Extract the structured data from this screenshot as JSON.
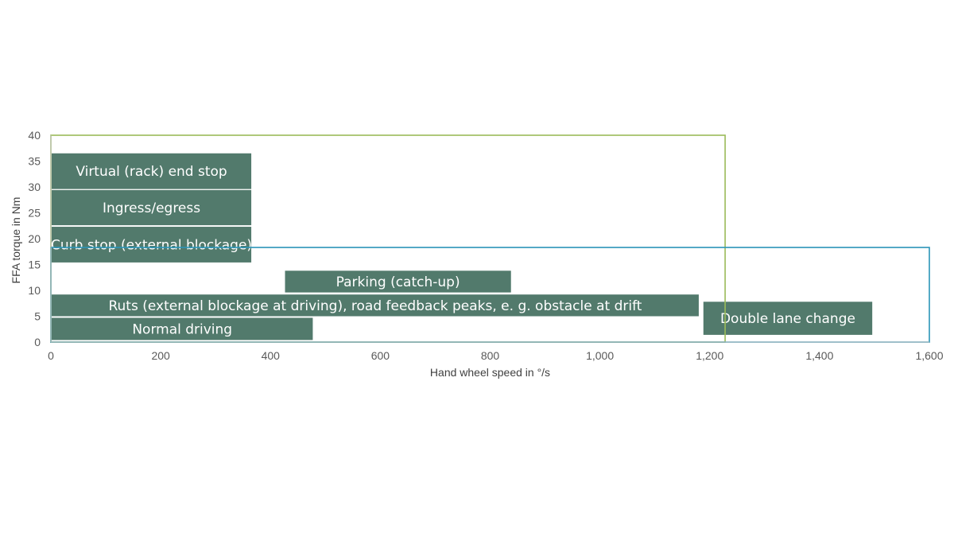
{
  "chart_data": {
    "type": "bar",
    "orientation": "range-boxes",
    "xlabel": "Hand wheel speed in °/s",
    "ylabel": "FFA torque in Nm",
    "xlim": [
      0,
      1600
    ],
    "ylim": [
      0,
      40
    ],
    "x_ticks": [
      "0",
      "200",
      "400",
      "600",
      "800",
      "1,000",
      "1,200",
      "1,400",
      "1,600"
    ],
    "y_ticks": [
      "0",
      "5",
      "10",
      "15",
      "20",
      "25",
      "30",
      "35",
      "40"
    ],
    "grid": false,
    "colors": {
      "box_fill": "#527a6c",
      "box_text": "#ffffff",
      "green_frame": "#9bbb59",
      "blue_frame": "#2b95b8",
      "axis": "#bfbfbf"
    },
    "regions": [
      {
        "label": "Virtual (rack) end stop",
        "x": [
          0,
          365
        ],
        "y": [
          29.6,
          36.5
        ]
      },
      {
        "label": "Ingress/egress",
        "x": [
          0,
          365
        ],
        "y": [
          22.6,
          29.4
        ]
      },
      {
        "label": "Curb stop (external blockage)",
        "x": [
          0,
          365
        ],
        "y": [
          15.4,
          22.3
        ]
      },
      {
        "label": "Parking (catch-up)",
        "x": [
          425,
          838
        ],
        "y": [
          9.6,
          13.8
        ]
      },
      {
        "label": "Ruts (external blockage at driving), road feedback peaks, e. g. obstacle at drift",
        "x": [
          0,
          1180
        ],
        "y": [
          5,
          9.2
        ]
      },
      {
        "label": "Normal driving",
        "x": [
          0,
          477
        ],
        "y": [
          0.4,
          4.7
        ]
      },
      {
        "label": "Double lane change",
        "x": [
          1187,
          1496
        ],
        "y": [
          1.4,
          7.8
        ]
      }
    ],
    "frames": [
      {
        "color": "green",
        "x": [
          0,
          1228
        ],
        "y": [
          0,
          40
        ]
      },
      {
        "color": "blue",
        "x": [
          0,
          1600
        ],
        "y": [
          0,
          18.3
        ]
      }
    ]
  }
}
